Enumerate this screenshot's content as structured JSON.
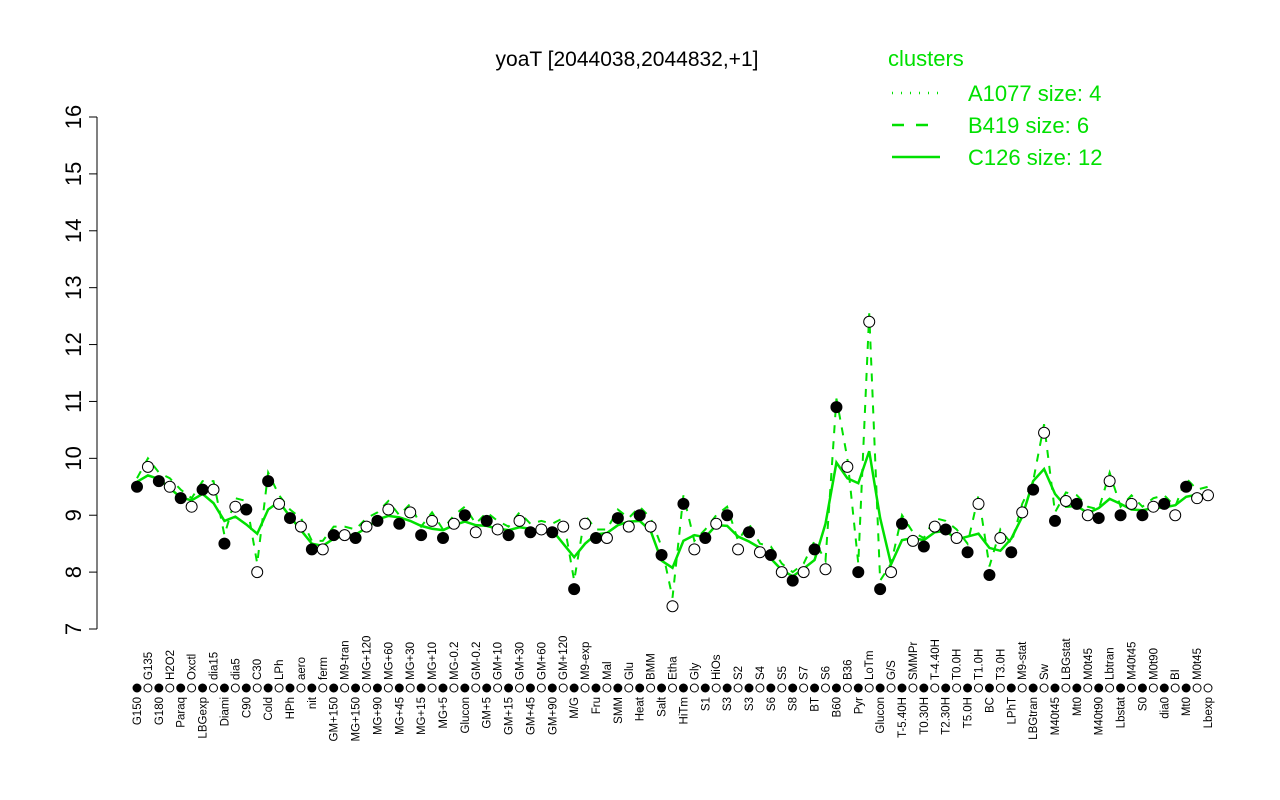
{
  "chart_data": {
    "type": "line",
    "title": "yoaT [2044038,2044832,+1]",
    "xlabel": "",
    "ylabel": "",
    "ylim": [
      7,
      16
    ],
    "yticks": [
      7,
      8,
      9,
      10,
      11,
      12,
      13,
      14,
      15,
      16
    ],
    "grid": false,
    "legend": {
      "title": "clusters",
      "placement": "top-right",
      "color": "#00e000",
      "entries": [
        {
          "label": "A1077 size: 4",
          "style": "dotted"
        },
        {
          "label": "B419 size: 6",
          "style": "dashed"
        },
        {
          "label": "C126 size: 12",
          "style": "solid"
        }
      ]
    },
    "line_color": "#00e000",
    "points": [
      {
        "label": "G150",
        "y": 9.5,
        "filled": true
      },
      {
        "label": "G135",
        "y": 9.85,
        "filled": false
      },
      {
        "label": "G180",
        "y": 9.6,
        "filled": true
      },
      {
        "label": "H2O2",
        "y": 9.5,
        "filled": false
      },
      {
        "label": "Paraq",
        "y": 9.3,
        "filled": true
      },
      {
        "label": "Oxctl",
        "y": 9.15,
        "filled": false
      },
      {
        "label": "LBGexp",
        "y": 9.45,
        "filled": true
      },
      {
        "label": "dia15",
        "y": 9.45,
        "filled": false
      },
      {
        "label": "Diami",
        "y": 8.5,
        "filled": true
      },
      {
        "label": "dia5",
        "y": 9.15,
        "filled": false
      },
      {
        "label": "C90",
        "y": 9.1,
        "filled": true
      },
      {
        "label": "C30",
        "y": 8.0,
        "filled": false
      },
      {
        "label": "Cold",
        "y": 9.6,
        "filled": true
      },
      {
        "label": "LPh",
        "y": 9.2,
        "filled": false
      },
      {
        "label": "HPh",
        "y": 8.95,
        "filled": true
      },
      {
        "label": "aero",
        "y": 8.8,
        "filled": false
      },
      {
        "label": "nit",
        "y": 8.4,
        "filled": true
      },
      {
        "label": "ferm",
        "y": 8.4,
        "filled": false
      },
      {
        "label": "GM+150",
        "y": 8.65,
        "filled": true
      },
      {
        "label": "M9-tran",
        "y": 8.65,
        "filled": false
      },
      {
        "label": "MG+150",
        "y": 8.6,
        "filled": true
      },
      {
        "label": "MG+120",
        "y": 8.8,
        "filled": false
      },
      {
        "label": "MG+90",
        "y": 8.9,
        "filled": true
      },
      {
        "label": "MG+60",
        "y": 9.1,
        "filled": false
      },
      {
        "label": "MG+45",
        "y": 8.85,
        "filled": true
      },
      {
        "label": "MG+30",
        "y": 9.05,
        "filled": false
      },
      {
        "label": "MG+15",
        "y": 8.65,
        "filled": true
      },
      {
        "label": "MG+10",
        "y": 8.9,
        "filled": false
      },
      {
        "label": "MG+5",
        "y": 8.6,
        "filled": true
      },
      {
        "label": "MG-0.2",
        "y": 8.85,
        "filled": false
      },
      {
        "label": "Glucon",
        "y": 9.0,
        "filled": true
      },
      {
        "label": "GM-0.2",
        "y": 8.7,
        "filled": false
      },
      {
        "label": "GM+5",
        "y": 8.9,
        "filled": true
      },
      {
        "label": "GM+10",
        "y": 8.75,
        "filled": false
      },
      {
        "label": "GM+15",
        "y": 8.65,
        "filled": true
      },
      {
        "label": "GM+30",
        "y": 8.9,
        "filled": false
      },
      {
        "label": "GM+45",
        "y": 8.7,
        "filled": true
      },
      {
        "label": "GM+60",
        "y": 8.75,
        "filled": false
      },
      {
        "label": "GM+90",
        "y": 8.7,
        "filled": true
      },
      {
        "label": "GM+120",
        "y": 8.8,
        "filled": false
      },
      {
        "label": "M/G",
        "y": 7.7,
        "filled": true
      },
      {
        "label": "M9-exp",
        "y": 8.85,
        "filled": false
      },
      {
        "label": "Fru",
        "y": 8.6,
        "filled": true
      },
      {
        "label": "Mal",
        "y": 8.6,
        "filled": false
      },
      {
        "label": "SMM",
        "y": 8.95,
        "filled": true
      },
      {
        "label": "Glu",
        "y": 8.8,
        "filled": false
      },
      {
        "label": "Heat",
        "y": 9.0,
        "filled": true
      },
      {
        "label": "BMM",
        "y": 8.8,
        "filled": false
      },
      {
        "label": "Salt",
        "y": 8.3,
        "filled": true
      },
      {
        "label": "Etha",
        "y": 7.4,
        "filled": false
      },
      {
        "label": "HiTm",
        "y": 9.2,
        "filled": true
      },
      {
        "label": "Gly",
        "y": 8.4,
        "filled": false
      },
      {
        "label": "S1",
        "y": 8.6,
        "filled": true
      },
      {
        "label": "HiOs",
        "y": 8.85,
        "filled": false
      },
      {
        "label": "S3",
        "y": 9.0,
        "filled": true
      },
      {
        "label": "S2",
        "y": 8.4,
        "filled": false
      },
      {
        "label": "S3",
        "y": 8.7,
        "filled": true
      },
      {
        "label": "S4",
        "y": 8.35,
        "filled": false
      },
      {
        "label": "S6",
        "y": 8.3,
        "filled": true
      },
      {
        "label": "S5",
        "y": 8.0,
        "filled": false
      },
      {
        "label": "S8",
        "y": 7.85,
        "filled": true
      },
      {
        "label": "S7",
        "y": 8.0,
        "filled": false
      },
      {
        "label": "BT",
        "y": 8.4,
        "filled": true
      },
      {
        "label": "S6",
        "y": 8.05,
        "filled": false
      },
      {
        "label": "B60",
        "y": 10.9,
        "filled": true
      },
      {
        "label": "B36",
        "y": 9.85,
        "filled": false
      },
      {
        "label": "Pyr",
        "y": 8.0,
        "filled": true
      },
      {
        "label": "LoTm",
        "y": 12.4,
        "filled": false
      },
      {
        "label": "Glucon",
        "y": 7.7,
        "filled": true
      },
      {
        "label": "G/S",
        "y": 8.0,
        "filled": false
      },
      {
        "label": "T-5.40H",
        "y": 8.85,
        "filled": true
      },
      {
        "label": "SMMPr",
        "y": 8.55,
        "filled": false
      },
      {
        "label": "T0.30H",
        "y": 8.45,
        "filled": true
      },
      {
        "label": "T-4.40H",
        "y": 8.8,
        "filled": false
      },
      {
        "label": "T2.30H",
        "y": 8.75,
        "filled": true
      },
      {
        "label": "T0.0H",
        "y": 8.6,
        "filled": false
      },
      {
        "label": "T5.0H",
        "y": 8.35,
        "filled": true
      },
      {
        "label": "T1.0H",
        "y": 9.2,
        "filled": false
      },
      {
        "label": "BC",
        "y": 7.95,
        "filled": true
      },
      {
        "label": "T3.0H",
        "y": 8.6,
        "filled": false
      },
      {
        "label": "LPhT",
        "y": 8.35,
        "filled": true
      },
      {
        "label": "M9-stat",
        "y": 9.05,
        "filled": false
      },
      {
        "label": "LBGtran",
        "y": 9.45,
        "filled": true
      },
      {
        "label": "Sw",
        "y": 10.45,
        "filled": false
      },
      {
        "label": "M40t45",
        "y": 8.9,
        "filled": true
      },
      {
        "label": "LBGstat",
        "y": 9.25,
        "filled": false
      },
      {
        "label": "Mt0",
        "y": 9.2,
        "filled": true
      },
      {
        "label": "M0t45",
        "y": 9.0,
        "filled": false
      },
      {
        "label": "M40t90",
        "y": 8.95,
        "filled": true
      },
      {
        "label": "Lbtran",
        "y": 9.6,
        "filled": false
      },
      {
        "label": "Lbstat",
        "y": 9.0,
        "filled": true
      },
      {
        "label": "M40t45",
        "y": 9.2,
        "filled": false
      },
      {
        "label": "S0",
        "y": 9.0,
        "filled": true
      },
      {
        "label": "M0t90",
        "y": 9.15,
        "filled": false
      },
      {
        "label": "dia0",
        "y": 9.2,
        "filled": true
      },
      {
        "label": "BI",
        "y": 9.0,
        "filled": false
      },
      {
        "label": "Mt0",
        "y": 9.5,
        "filled": true
      },
      {
        "label": "M0t45",
        "y": 9.3,
        "filled": false
      },
      {
        "label": "Lbexp",
        "y": 9.35,
        "filled": false
      }
    ]
  }
}
